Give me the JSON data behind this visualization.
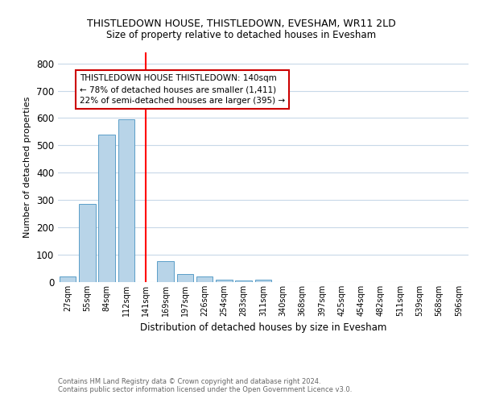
{
  "title": "THISTLEDOWN HOUSE, THISTLEDOWN, EVESHAM, WR11 2LD",
  "subtitle": "Size of property relative to detached houses in Evesham",
  "xlabel": "Distribution of detached houses by size in Evesham",
  "ylabel": "Number of detached properties",
  "footnote1": "Contains HM Land Registry data © Crown copyright and database right 2024.",
  "footnote2": "Contains public sector information licensed under the Open Government Licence v3.0.",
  "categories": [
    "27sqm",
    "55sqm",
    "84sqm",
    "112sqm",
    "141sqm",
    "169sqm",
    "197sqm",
    "226sqm",
    "254sqm",
    "283sqm",
    "311sqm",
    "340sqm",
    "368sqm",
    "397sqm",
    "425sqm",
    "454sqm",
    "482sqm",
    "511sqm",
    "539sqm",
    "568sqm",
    "596sqm"
  ],
  "values": [
    20,
    285,
    540,
    595,
    0,
    78,
    30,
    22,
    8,
    7,
    8,
    0,
    0,
    0,
    0,
    0,
    0,
    0,
    0,
    0,
    0
  ],
  "bar_color": "#b8d4e8",
  "bar_edge_color": "#5a9ec8",
  "red_line_index": 4,
  "annotation_text": "THISTLEDOWN HOUSE THISTLEDOWN: 140sqm\n← 78% of detached houses are smaller (1,411)\n22% of semi-detached houses are larger (395) →",
  "annotation_box_color": "#ffffff",
  "annotation_box_edge": "#cc0000",
  "ylim": [
    0,
    840
  ],
  "yticks": [
    0,
    100,
    200,
    300,
    400,
    500,
    600,
    700,
    800
  ],
  "background_color": "#ffffff",
  "grid_color": "#c8d8e8"
}
